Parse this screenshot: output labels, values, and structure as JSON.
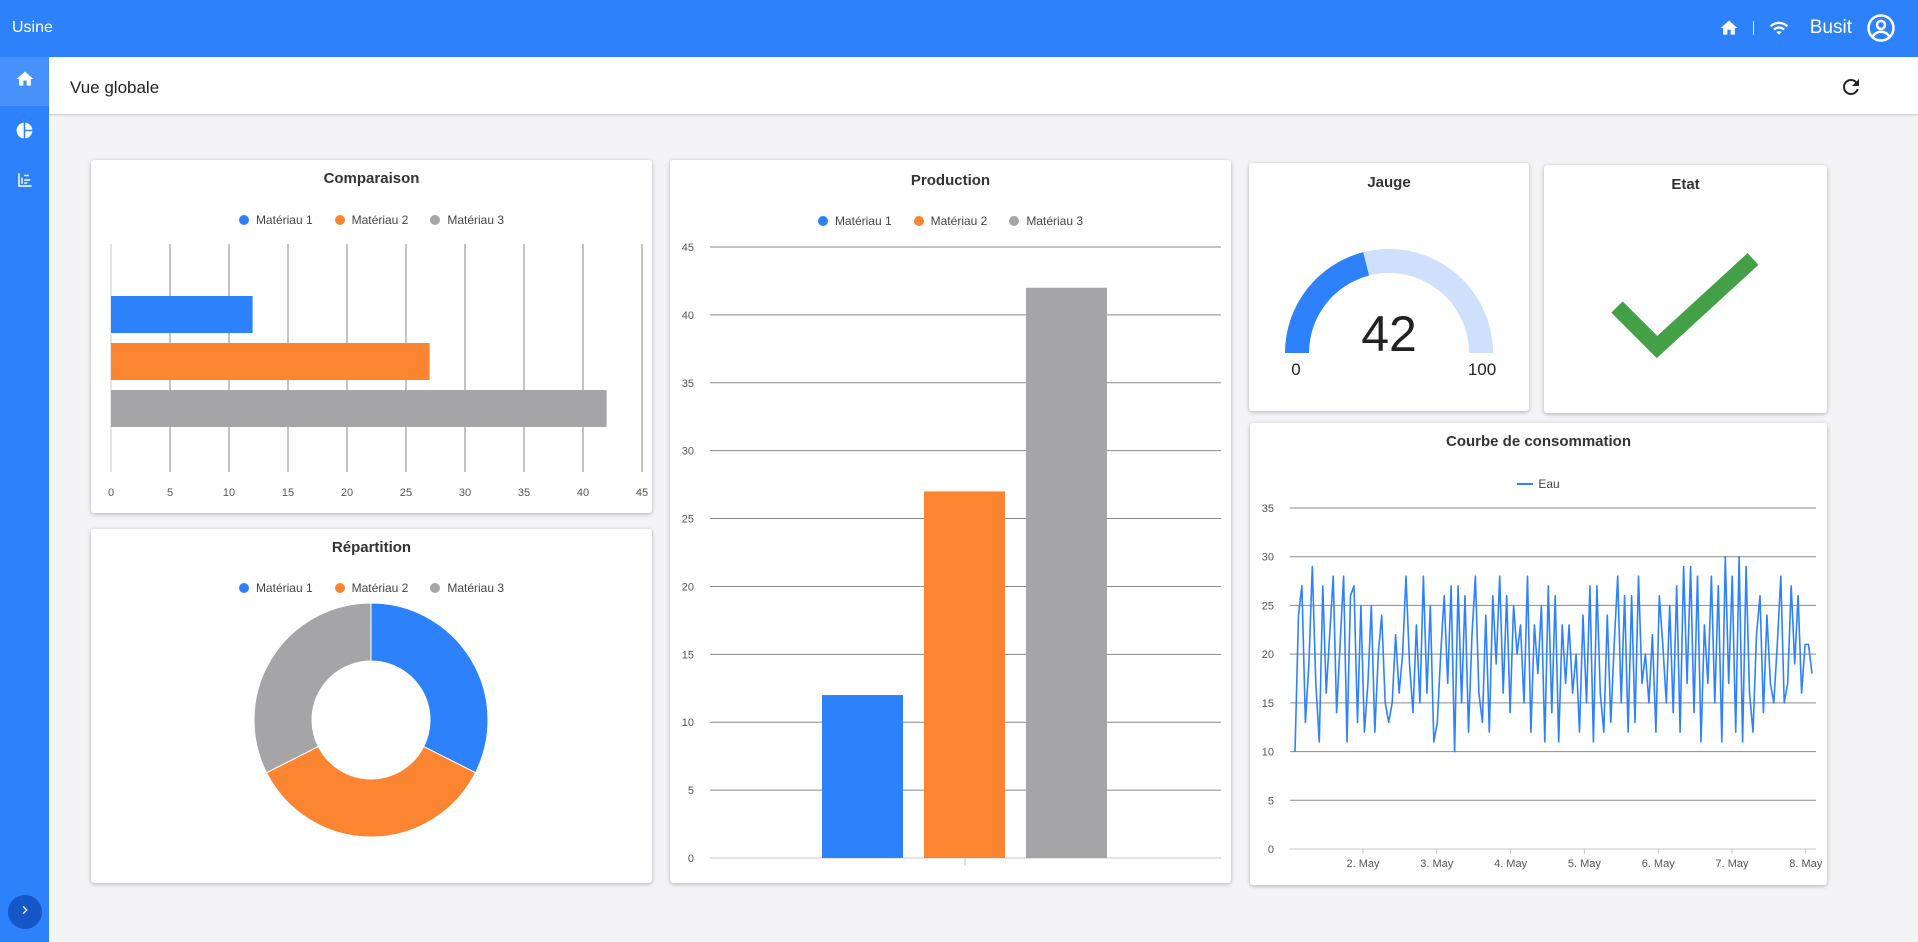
{
  "app": {
    "title": "Usine",
    "user": "Busit"
  },
  "header": {
    "title": "Vue globale"
  },
  "colors": {
    "primary": "#2d82fc",
    "orange": "#fb8530",
    "gray": "#a5a4a7",
    "green": "#43a047",
    "gauge_track": "#cfe0fc"
  },
  "icons": {
    "topbar": [
      "home-icon",
      "wifi-icon",
      "account-circle-icon"
    ],
    "sidebar": [
      "home-icon",
      "pie-chart-icon",
      "bar-chart-icon"
    ],
    "header": [
      "refresh-icon"
    ],
    "expand": "chevron-right-icon"
  },
  "cards": {
    "comparaison": {
      "title": "Comparaison"
    },
    "production": {
      "title": "Production"
    },
    "jauge": {
      "title": "Jauge"
    },
    "etat": {
      "title": "Etat"
    },
    "repartition": {
      "title": "Répartition"
    },
    "consommation": {
      "title": "Courbe de consommation"
    }
  },
  "legend": {
    "m1": "Matériau 1",
    "m2": "Matériau 2",
    "m3": "Matériau 3",
    "eau": "Eau"
  },
  "gauge": {
    "value": 42,
    "min": 0,
    "max": 100,
    "value_text": "42",
    "min_text": "0",
    "max_text": "100"
  },
  "etat": {
    "status": "ok"
  },
  "chart_data": [
    {
      "id": "comparaison",
      "type": "bar",
      "orientation": "horizontal",
      "title": "Comparaison",
      "series": [
        {
          "name": "Matériau 1",
          "values": [
            12
          ],
          "color": "#2d82fc"
        },
        {
          "name": "Matériau 2",
          "values": [
            27
          ],
          "color": "#fb8530"
        },
        {
          "name": "Matériau 3",
          "values": [
            42
          ],
          "color": "#a5a4a7"
        }
      ],
      "xlim": [
        0,
        45
      ],
      "ticks": [
        "0",
        "5",
        "10",
        "15",
        "20",
        "25",
        "30",
        "35",
        "40",
        "45"
      ],
      "grid": true,
      "legend": "top"
    },
    {
      "id": "production",
      "type": "bar",
      "title": "Production",
      "series": [
        {
          "name": "Matériau 1",
          "values": [
            12
          ],
          "color": "#2d82fc"
        },
        {
          "name": "Matériau 2",
          "values": [
            27
          ],
          "color": "#fb8530"
        },
        {
          "name": "Matériau 3",
          "values": [
            42
          ],
          "color": "#a5a4a7"
        }
      ],
      "ylim": [
        0,
        45
      ],
      "ticks": [
        "0",
        "5",
        "10",
        "15",
        "20",
        "25",
        "30",
        "35",
        "40",
        "45"
      ],
      "grid": true,
      "legend": "top"
    },
    {
      "id": "repartition",
      "type": "pie",
      "title": "Répartition",
      "donut": true,
      "slices": [
        {
          "name": "Matériau 1",
          "value": 12,
          "color": "#2d82fc"
        },
        {
          "name": "Matériau 2",
          "value": 13,
          "color": "#fb8530"
        },
        {
          "name": "Matériau 3",
          "value": 12,
          "color": "#a5a4a7"
        }
      ],
      "legend": "top"
    },
    {
      "id": "consommation",
      "type": "line",
      "title": "Courbe de consommation",
      "series": [
        {
          "name": "Eau",
          "color": "#2d82fc",
          "values": [
            10,
            24,
            27,
            13,
            19,
            29,
            17,
            11,
            27,
            16,
            22,
            28,
            14,
            21,
            28,
            11,
            26,
            27,
            13,
            25,
            12,
            17,
            25,
            12,
            20,
            24,
            15,
            13,
            15,
            22,
            16,
            20,
            28,
            19,
            14,
            23,
            15,
            28,
            16,
            25,
            11,
            13,
            20,
            26,
            17,
            27,
            10,
            27,
            15,
            26,
            12,
            22,
            28,
            16,
            13,
            24,
            12,
            26,
            19,
            28,
            16,
            26,
            14,
            25,
            20,
            23,
            15,
            28,
            12,
            23,
            18,
            25,
            11,
            27,
            14,
            26,
            11,
            23,
            17,
            23,
            16,
            20,
            12,
            24,
            15,
            27,
            11,
            27,
            16,
            12,
            24,
            13,
            21,
            28,
            15,
            26,
            12,
            26,
            13,
            28,
            17,
            20,
            15,
            22,
            12,
            26,
            21,
            15,
            25,
            14,
            27,
            12,
            29,
            17,
            29,
            14,
            28,
            11,
            23,
            17,
            28,
            15,
            27,
            11,
            30,
            17,
            28,
            12,
            30,
            11,
            29,
            16,
            12,
            22,
            26,
            14,
            24,
            17,
            15,
            21,
            28,
            15,
            17,
            27,
            19,
            26,
            16,
            21,
            21,
            18
          ]
        }
      ],
      "x_ticks": [
        "2. May",
        "3. May",
        "4. May",
        "5. May",
        "6. May",
        "7. May",
        "8. May"
      ],
      "ylim": [
        0,
        35
      ],
      "y_ticks": [
        "0",
        "5",
        "10",
        "15",
        "20",
        "25",
        "30",
        "35"
      ],
      "grid": true,
      "legend": "top"
    }
  ]
}
